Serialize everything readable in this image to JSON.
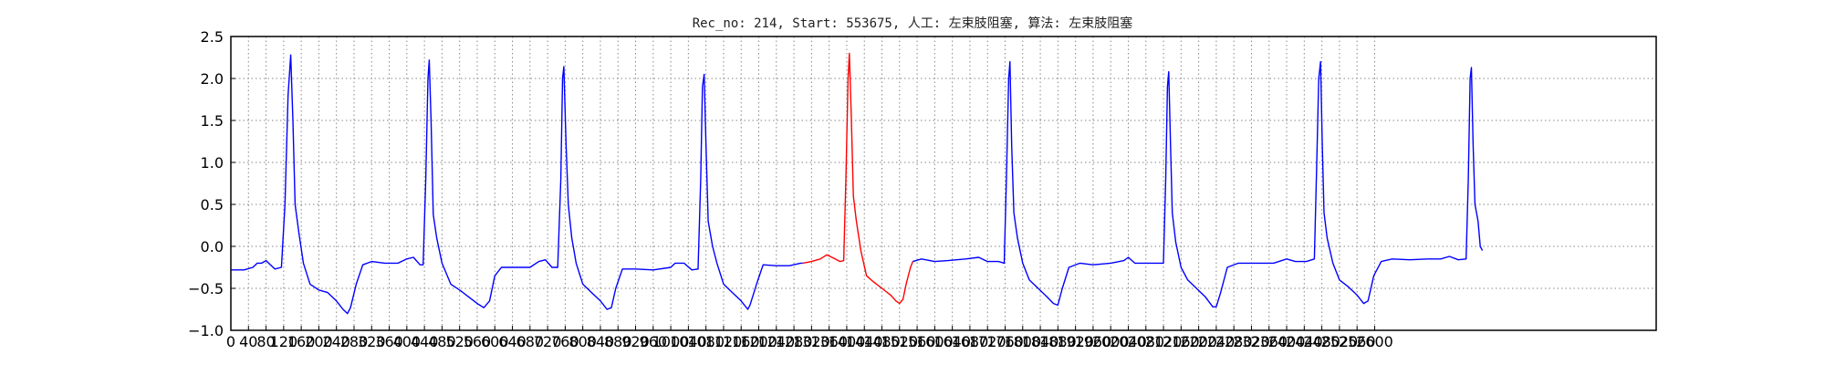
{
  "chart_data": {
    "type": "line",
    "title": "Rec_no: 214, Start: 553675, 人工: 左束肢阻塞, 算法: 左束肢阻塞",
    "xlabel": "",
    "ylabel": "",
    "xlim": [
      0,
      3240
    ],
    "ylim": [
      -1.0,
      2.5
    ],
    "grid": true,
    "grid_style": "dotted",
    "x_ticks": [
      0,
      40,
      80,
      120,
      160,
      200,
      240,
      280,
      320,
      360,
      400,
      440,
      480,
      520,
      560,
      600,
      640,
      680,
      720,
      760,
      800,
      840,
      880,
      920,
      960,
      1000,
      1040,
      1080,
      1120,
      1160,
      1200,
      1240,
      1280,
      1320,
      1360,
      1400,
      1440,
      1480,
      1520,
      1560,
      1600,
      1640,
      1680,
      1720,
      1760,
      1800,
      1840,
      1880,
      1920,
      1960,
      2000,
      2040,
      2080,
      2120,
      2160,
      2200,
      2240,
      2280,
      2320,
      2360,
      2400,
      2440,
      2480,
      2520,
      2560,
      2600
    ],
    "y_ticks": [
      -1.0,
      -0.5,
      0.0,
      0.5,
      1.0,
      1.5,
      2.0,
      2.5
    ],
    "y_tick_labels": [
      "−1.0",
      "−0.5",
      "0.0",
      "0.5",
      "1.0",
      "1.5",
      "2.0",
      "2.5"
    ],
    "colors": {
      "normal": "#0000ff",
      "highlight": "#ff0000",
      "axis": "#000000",
      "grid": "#888888"
    },
    "beat_peaks_x": [
      135,
      450,
      755,
      1075,
      1405,
      1770,
      2130,
      2475,
      2820
    ],
    "series": [
      {
        "color": "#0000ff",
        "points": [
          [
            0,
            -0.28
          ],
          [
            30,
            -0.28
          ],
          [
            50,
            -0.25
          ],
          [
            60,
            -0.2
          ],
          [
            70,
            -0.2
          ],
          [
            80,
            -0.17
          ],
          [
            90,
            -0.22
          ],
          [
            100,
            -0.27
          ],
          [
            115,
            -0.25
          ],
          [
            123,
            0.5
          ],
          [
            130,
            1.8
          ],
          [
            136,
            2.28
          ],
          [
            141,
            1.5
          ],
          [
            146,
            0.5
          ],
          [
            155,
            0.15
          ],
          [
            165,
            -0.2
          ],
          [
            180,
            -0.45
          ],
          [
            200,
            -0.52
          ],
          [
            220,
            -0.55
          ],
          [
            240,
            -0.65
          ],
          [
            255,
            -0.75
          ],
          [
            265,
            -0.8
          ],
          [
            272,
            -0.73
          ],
          [
            285,
            -0.45
          ],
          [
            300,
            -0.22
          ],
          [
            320,
            -0.18
          ],
          [
            350,
            -0.2
          ],
          [
            380,
            -0.2
          ],
          [
            400,
            -0.15
          ],
          [
            415,
            -0.13
          ],
          [
            430,
            -0.22
          ],
          [
            437,
            -0.22
          ],
          [
            443,
            0.8
          ],
          [
            448,
            2.0
          ],
          [
            451,
            2.22
          ],
          [
            455,
            1.5
          ],
          [
            460,
            0.38
          ],
          [
            468,
            0.1
          ],
          [
            480,
            -0.2
          ],
          [
            500,
            -0.45
          ],
          [
            520,
            -0.52
          ],
          [
            540,
            -0.6
          ],
          [
            560,
            -0.68
          ],
          [
            575,
            -0.73
          ],
          [
            588,
            -0.65
          ],
          [
            600,
            -0.35
          ],
          [
            615,
            -0.25
          ],
          [
            640,
            -0.25
          ],
          [
            680,
            -0.25
          ],
          [
            700,
            -0.18
          ],
          [
            715,
            -0.16
          ],
          [
            730,
            -0.25
          ],
          [
            743,
            -0.25
          ],
          [
            750,
            0.8
          ],
          [
            754,
            2.0
          ],
          [
            757,
            2.14
          ],
          [
            762,
            1.2
          ],
          [
            767,
            0.5
          ],
          [
            775,
            0.1
          ],
          [
            785,
            -0.2
          ],
          [
            800,
            -0.45
          ],
          [
            820,
            -0.55
          ],
          [
            840,
            -0.65
          ],
          [
            855,
            -0.75
          ],
          [
            865,
            -0.73
          ],
          [
            875,
            -0.5
          ],
          [
            890,
            -0.27
          ],
          [
            920,
            -0.27
          ],
          [
            960,
            -0.28
          ],
          [
            1000,
            -0.25
          ],
          [
            1010,
            -0.2
          ],
          [
            1030,
            -0.2
          ],
          [
            1048,
            -0.28
          ],
          [
            1062,
            -0.27
          ],
          [
            1068,
            0.8
          ],
          [
            1072,
            1.9
          ],
          [
            1076,
            2.05
          ],
          [
            1080,
            1.2
          ],
          [
            1085,
            0.3
          ],
          [
            1095,
            0.0
          ],
          [
            1105,
            -0.2
          ],
          [
            1120,
            -0.45
          ],
          [
            1140,
            -0.55
          ],
          [
            1160,
            -0.65
          ],
          [
            1175,
            -0.75
          ],
          [
            1180,
            -0.7
          ],
          [
            1195,
            -0.45
          ],
          [
            1210,
            -0.22
          ],
          [
            1240,
            -0.23
          ],
          [
            1270,
            -0.23
          ],
          [
            1295,
            -0.2
          ],
          [
            1300,
            -0.2
          ]
        ]
      },
      {
        "color": "#ff0000",
        "points": [
          [
            1300,
            -0.2
          ],
          [
            1320,
            -0.18
          ],
          [
            1340,
            -0.15
          ],
          [
            1355,
            -0.1
          ],
          [
            1370,
            -0.14
          ],
          [
            1385,
            -0.18
          ],
          [
            1393,
            -0.17
          ],
          [
            1398,
            0.8
          ],
          [
            1403,
            2.0
          ],
          [
            1406,
            2.3
          ],
          [
            1410,
            1.6
          ],
          [
            1415,
            0.6
          ],
          [
            1422,
            0.3
          ],
          [
            1432,
            -0.05
          ],
          [
            1445,
            -0.35
          ],
          [
            1460,
            -0.42
          ],
          [
            1480,
            -0.5
          ],
          [
            1500,
            -0.58
          ],
          [
            1512,
            -0.65
          ],
          [
            1520,
            -0.68
          ],
          [
            1528,
            -0.63
          ],
          [
            1535,
            -0.45
          ],
          [
            1545,
            -0.25
          ],
          [
            1550,
            -0.18
          ]
        ]
      },
      {
        "color": "#0000ff",
        "points": [
          [
            1550,
            -0.18
          ],
          [
            1570,
            -0.15
          ],
          [
            1600,
            -0.18
          ],
          [
            1630,
            -0.17
          ],
          [
            1670,
            -0.15
          ],
          [
            1700,
            -0.13
          ],
          [
            1720,
            -0.18
          ],
          [
            1745,
            -0.18
          ],
          [
            1758,
            -0.2
          ],
          [
            1763,
            0.8
          ],
          [
            1768,
            2.0
          ],
          [
            1771,
            2.2
          ],
          [
            1775,
            1.2
          ],
          [
            1780,
            0.4
          ],
          [
            1788,
            0.1
          ],
          [
            1800,
            -0.2
          ],
          [
            1815,
            -0.4
          ],
          [
            1835,
            -0.5
          ],
          [
            1855,
            -0.6
          ],
          [
            1870,
            -0.68
          ],
          [
            1880,
            -0.7
          ],
          [
            1890,
            -0.5
          ],
          [
            1905,
            -0.25
          ],
          [
            1930,
            -0.2
          ],
          [
            1960,
            -0.22
          ],
          [
            2000,
            -0.2
          ],
          [
            2030,
            -0.17
          ],
          [
            2040,
            -0.13
          ],
          [
            2055,
            -0.2
          ],
          [
            2070,
            -0.2
          ],
          [
            2120,
            -0.2
          ],
          [
            2125,
            0.8
          ],
          [
            2129,
            1.9
          ],
          [
            2132,
            2.08
          ],
          [
            2136,
            1.2
          ],
          [
            2140,
            0.4
          ],
          [
            2148,
            0.05
          ],
          [
            2160,
            -0.25
          ],
          [
            2175,
            -0.4
          ],
          [
            2195,
            -0.5
          ],
          [
            2215,
            -0.6
          ],
          [
            2232,
            -0.72
          ],
          [
            2240,
            -0.72
          ],
          [
            2250,
            -0.55
          ],
          [
            2265,
            -0.25
          ],
          [
            2290,
            -0.2
          ],
          [
            2330,
            -0.2
          ],
          [
            2370,
            -0.2
          ],
          [
            2400,
            -0.15
          ],
          [
            2420,
            -0.18
          ],
          [
            2445,
            -0.18
          ],
          [
            2463,
            -0.15
          ],
          [
            2468,
            0.9
          ],
          [
            2473,
            2.0
          ],
          [
            2477,
            2.2
          ],
          [
            2481,
            1.2
          ],
          [
            2485,
            0.4
          ],
          [
            2492,
            0.1
          ],
          [
            2505,
            -0.2
          ],
          [
            2520,
            -0.4
          ],
          [
            2540,
            -0.48
          ],
          [
            2560,
            -0.58
          ],
          [
            2575,
            -0.68
          ],
          [
            2585,
            -0.65
          ],
          [
            2598,
            -0.35
          ],
          [
            2615,
            -0.18
          ],
          [
            2640,
            -0.15
          ],
          [
            2680,
            -0.16
          ],
          [
            2720,
            -0.15
          ],
          [
            2750,
            -0.15
          ],
          [
            2770,
            -0.12
          ],
          [
            2790,
            -0.16
          ],
          [
            2808,
            -0.15
          ],
          [
            2813,
            0.8
          ],
          [
            2817,
            2.0
          ],
          [
            2820,
            2.13
          ],
          [
            2824,
            1.2
          ],
          [
            2828,
            0.5
          ],
          [
            2835,
            0.3
          ],
          [
            2840,
            0.0
          ],
          [
            2845,
            -0.05
          ]
        ]
      }
    ]
  }
}
